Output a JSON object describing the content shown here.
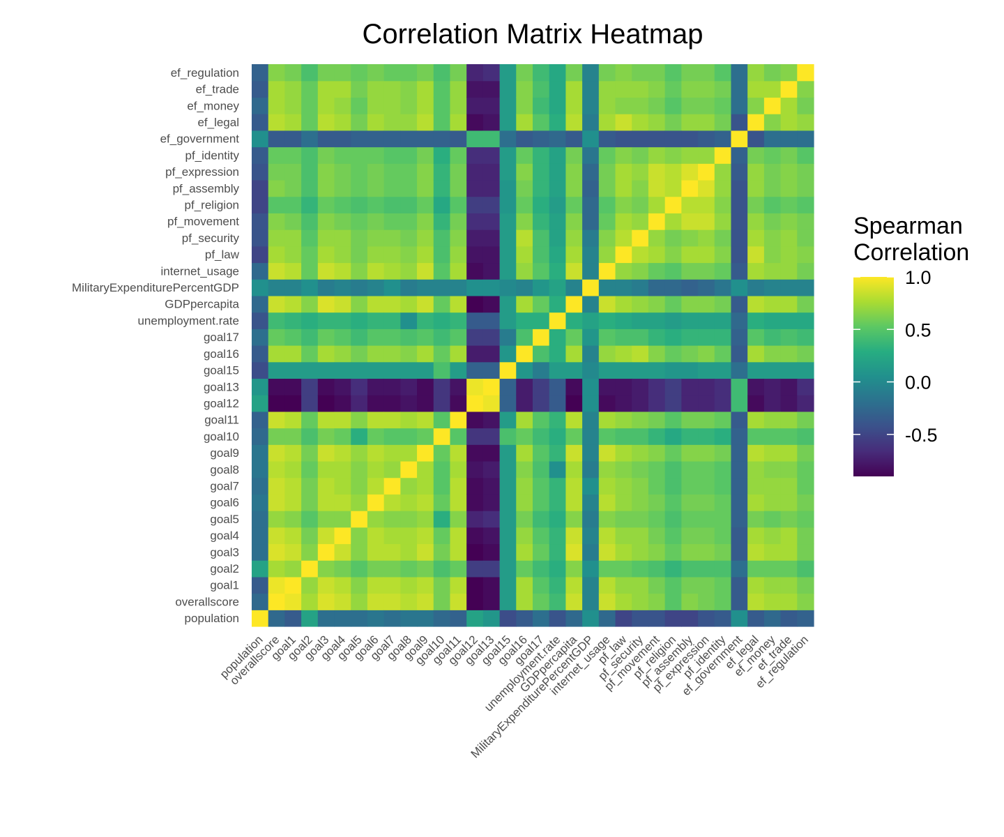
{
  "chart_data": {
    "type": "heatmap",
    "title": "Correlation Matrix Heatmap",
    "xlabel": "",
    "ylabel": "",
    "variables": [
      "population",
      "overallscore",
      "goal1",
      "goal2",
      "goal3",
      "goal4",
      "goal5",
      "goal6",
      "goal7",
      "goal8",
      "goal9",
      "goal10",
      "goal11",
      "goal12",
      "goal13",
      "goal15",
      "goal16",
      "goal17",
      "unemployment.rate",
      "GDPpercapita",
      "MilitaryExpenditurePercentGDP",
      "internet_usage",
      "pf_law",
      "pf_security",
      "pf_movement",
      "pf_religion",
      "pf_assembly",
      "pf_expression",
      "pf_identity",
      "ef_government",
      "ef_legal",
      "ef_money",
      "ef_trade",
      "ef_regulation"
    ],
    "value_range": [
      -0.9,
      1.0
    ],
    "colorscale": "viridis",
    "legend": {
      "title_lines": [
        "Spearman",
        "Correlation"
      ],
      "ticks": [
        1.0,
        0.5,
        0.0,
        -0.5
      ],
      "tick_labels": [
        "1.0",
        "0.5",
        "0.0",
        "-0.5"
      ],
      "placement": "right"
    },
    "values": [
      [
        1.0,
        -0.25,
        -0.35,
        0.2,
        -0.2,
        -0.2,
        -0.2,
        -0.15,
        -0.2,
        -0.15,
        -0.15,
        -0.25,
        -0.3,
        0.2,
        0.1,
        -0.45,
        -0.35,
        -0.2,
        -0.4,
        -0.25,
        0.05,
        -0.25,
        -0.5,
        -0.4,
        -0.4,
        -0.5,
        -0.5,
        -0.4,
        -0.35,
        0.05,
        -0.35,
        -0.25,
        -0.35,
        -0.3
      ],
      [
        -0.25,
        1.0,
        0.95,
        0.75,
        0.9,
        0.85,
        0.7,
        0.85,
        0.85,
        0.8,
        0.85,
        0.6,
        0.85,
        -0.9,
        -0.85,
        0.15,
        0.75,
        0.55,
        0.4,
        0.85,
        -0.05,
        0.85,
        0.75,
        0.7,
        0.65,
        0.5,
        0.65,
        0.6,
        0.55,
        -0.35,
        0.8,
        0.75,
        0.75,
        0.65
      ],
      [
        -0.35,
        0.95,
        1.0,
        0.7,
        0.85,
        0.8,
        0.65,
        0.8,
        0.8,
        0.75,
        0.8,
        0.6,
        0.8,
        -0.9,
        -0.85,
        0.15,
        0.75,
        0.5,
        0.35,
        0.8,
        -0.05,
        0.8,
        0.7,
        0.7,
        0.6,
        0.5,
        0.6,
        0.6,
        0.55,
        -0.35,
        0.75,
        0.7,
        0.7,
        0.6
      ],
      [
        0.2,
        0.75,
        0.7,
        1.0,
        0.65,
        0.6,
        0.5,
        0.6,
        0.6,
        0.55,
        0.6,
        0.45,
        0.55,
        -0.55,
        -0.55,
        0.15,
        0.55,
        0.4,
        0.3,
        0.65,
        0.05,
        0.55,
        0.55,
        0.5,
        0.45,
        0.35,
        0.45,
        0.45,
        0.45,
        -0.2,
        0.55,
        0.55,
        0.55,
        0.45
      ],
      [
        -0.2,
        0.9,
        0.85,
        0.65,
        1.0,
        0.85,
        0.65,
        0.8,
        0.8,
        0.75,
        0.85,
        0.6,
        0.8,
        -0.9,
        -0.85,
        0.15,
        0.75,
        0.55,
        0.35,
        0.9,
        -0.1,
        0.85,
        0.75,
        0.7,
        0.65,
        0.55,
        0.65,
        0.65,
        0.6,
        -0.35,
        0.8,
        0.75,
        0.75,
        0.6
      ],
      [
        -0.2,
        0.85,
        0.8,
        0.6,
        0.85,
        1.0,
        0.65,
        0.8,
        0.75,
        0.75,
        0.8,
        0.55,
        0.8,
        -0.85,
        -0.8,
        0.15,
        0.7,
        0.5,
        0.35,
        0.85,
        -0.05,
        0.8,
        0.7,
        0.7,
        0.6,
        0.5,
        0.6,
        0.6,
        0.55,
        -0.35,
        0.75,
        0.7,
        0.75,
        0.6
      ],
      [
        -0.2,
        0.7,
        0.65,
        0.5,
        0.65,
        0.65,
        1.0,
        0.7,
        0.65,
        0.65,
        0.7,
        0.3,
        0.65,
        -0.7,
        -0.65,
        0.15,
        0.6,
        0.4,
        0.3,
        0.65,
        -0.1,
        0.65,
        0.6,
        0.6,
        0.55,
        0.45,
        0.55,
        0.55,
        0.55,
        -0.3,
        0.6,
        0.55,
        0.6,
        0.55
      ],
      [
        -0.15,
        0.85,
        0.8,
        0.6,
        0.8,
        0.8,
        0.7,
        1.0,
        0.8,
        0.75,
        0.8,
        0.55,
        0.8,
        -0.85,
        -0.8,
        0.15,
        0.7,
        0.5,
        0.35,
        0.8,
        -0.05,
        0.8,
        0.7,
        0.65,
        0.6,
        0.5,
        0.6,
        0.6,
        0.55,
        -0.3,
        0.75,
        0.7,
        0.7,
        0.6
      ],
      [
        -0.2,
        0.85,
        0.8,
        0.6,
        0.8,
        0.75,
        0.65,
        0.8,
        1.0,
        0.7,
        0.75,
        0.5,
        0.8,
        -0.85,
        -0.8,
        0.15,
        0.7,
        0.5,
        0.35,
        0.8,
        0.05,
        0.75,
        0.7,
        0.65,
        0.55,
        0.45,
        0.55,
        0.55,
        0.5,
        -0.3,
        0.7,
        0.7,
        0.7,
        0.55
      ],
      [
        -0.15,
        0.8,
        0.75,
        0.55,
        0.75,
        0.75,
        0.65,
        0.75,
        0.7,
        1.0,
        0.75,
        0.5,
        0.75,
        -0.8,
        -0.75,
        0.15,
        0.65,
        0.45,
        0.05,
        0.75,
        -0.1,
        0.7,
        0.65,
        0.6,
        0.55,
        0.45,
        0.55,
        0.55,
        0.5,
        -0.3,
        0.7,
        0.65,
        0.65,
        0.55
      ],
      [
        -0.15,
        0.85,
        0.8,
        0.6,
        0.85,
        0.8,
        0.7,
        0.8,
        0.75,
        0.75,
        1.0,
        0.55,
        0.8,
        -0.85,
        -0.85,
        0.15,
        0.75,
        0.5,
        0.35,
        0.85,
        -0.05,
        0.85,
        0.75,
        0.7,
        0.65,
        0.55,
        0.65,
        0.65,
        0.6,
        -0.3,
        0.8,
        0.75,
        0.75,
        0.6
      ],
      [
        -0.25,
        0.6,
        0.6,
        0.45,
        0.6,
        0.55,
        0.3,
        0.55,
        0.5,
        0.5,
        0.55,
        1.0,
        0.5,
        -0.6,
        -0.6,
        0.45,
        0.55,
        0.4,
        0.3,
        0.55,
        -0.05,
        0.5,
        0.45,
        0.45,
        0.35,
        0.25,
        0.35,
        0.35,
        0.3,
        -0.3,
        0.5,
        0.5,
        0.5,
        0.45
      ],
      [
        -0.3,
        0.85,
        0.8,
        0.55,
        0.8,
        0.8,
        0.65,
        0.8,
        0.8,
        0.75,
        0.8,
        0.5,
        1.0,
        -0.85,
        -0.8,
        0.15,
        0.75,
        0.5,
        0.35,
        0.8,
        -0.05,
        0.75,
        0.7,
        0.65,
        0.6,
        0.5,
        0.6,
        0.6,
        0.55,
        -0.35,
        0.75,
        0.7,
        0.7,
        0.6
      ],
      [
        0.2,
        -0.9,
        -0.9,
        -0.55,
        -0.9,
        -0.85,
        -0.7,
        -0.85,
        -0.85,
        -0.8,
        -0.85,
        -0.6,
        -0.85,
        1.0,
        0.95,
        -0.3,
        -0.75,
        -0.55,
        -0.35,
        -0.9,
        0.05,
        -0.85,
        -0.8,
        -0.75,
        -0.65,
        -0.55,
        -0.7,
        -0.7,
        -0.65,
        0.4,
        -0.85,
        -0.75,
        -0.8,
        -0.7
      ],
      [
        0.1,
        -0.85,
        -0.85,
        -0.55,
        -0.85,
        -0.8,
        -0.65,
        -0.8,
        -0.8,
        -0.75,
        -0.85,
        -0.6,
        -0.8,
        0.95,
        1.0,
        -0.3,
        -0.75,
        -0.55,
        -0.35,
        -0.85,
        0.05,
        -0.8,
        -0.8,
        -0.75,
        -0.65,
        -0.55,
        -0.7,
        -0.7,
        -0.65,
        0.4,
        -0.8,
        -0.75,
        -0.8,
        -0.65
      ],
      [
        -0.45,
        0.15,
        0.15,
        0.15,
        0.15,
        0.15,
        0.15,
        0.15,
        0.15,
        0.15,
        0.15,
        0.45,
        0.15,
        -0.3,
        -0.3,
        1.0,
        0.1,
        -0.1,
        0.15,
        0.15,
        0.0,
        0.15,
        0.15,
        0.15,
        0.15,
        0.1,
        0.1,
        0.15,
        0.15,
        -0.2,
        0.15,
        0.15,
        0.15,
        0.15
      ],
      [
        -0.35,
        0.75,
        0.75,
        0.55,
        0.75,
        0.7,
        0.6,
        0.7,
        0.7,
        0.65,
        0.75,
        0.55,
        0.75,
        -0.75,
        -0.75,
        0.1,
        1.0,
        0.45,
        0.3,
        0.75,
        -0.05,
        0.7,
        0.75,
        0.8,
        0.65,
        0.55,
        0.6,
        0.65,
        0.55,
        -0.35,
        0.75,
        0.65,
        0.65,
        0.6
      ],
      [
        -0.2,
        0.55,
        0.5,
        0.4,
        0.55,
        0.5,
        0.4,
        0.5,
        0.5,
        0.45,
        0.5,
        0.4,
        0.5,
        -0.55,
        -0.55,
        -0.1,
        0.45,
        1.0,
        0.3,
        0.55,
        0.1,
        0.5,
        0.45,
        0.45,
        0.35,
        0.3,
        0.35,
        0.35,
        0.35,
        -0.3,
        0.5,
        0.4,
        0.45,
        0.4
      ],
      [
        -0.4,
        0.4,
        0.35,
        0.3,
        0.35,
        0.35,
        0.3,
        0.35,
        0.35,
        0.05,
        0.35,
        0.3,
        0.35,
        -0.35,
        -0.35,
        0.15,
        0.3,
        0.3,
        1.0,
        0.3,
        0.2,
        0.3,
        0.25,
        0.2,
        0.2,
        0.15,
        0.2,
        0.2,
        0.2,
        -0.25,
        0.3,
        0.25,
        0.25,
        0.25
      ],
      [
        -0.25,
        0.85,
        0.8,
        0.65,
        0.9,
        0.85,
        0.65,
        0.8,
        0.8,
        0.75,
        0.85,
        0.55,
        0.8,
        -0.9,
        -0.85,
        0.15,
        0.75,
        0.55,
        0.3,
        1.0,
        -0.05,
        0.85,
        0.75,
        0.7,
        0.65,
        0.55,
        0.65,
        0.65,
        0.6,
        -0.35,
        0.8,
        0.75,
        0.75,
        0.6
      ],
      [
        0.05,
        -0.05,
        -0.05,
        0.05,
        -0.1,
        -0.05,
        -0.1,
        -0.05,
        0.05,
        -0.1,
        -0.05,
        -0.05,
        -0.05,
        0.05,
        0.05,
        0.0,
        -0.05,
        0.1,
        0.2,
        -0.05,
        1.0,
        -0.05,
        -0.05,
        -0.1,
        -0.25,
        -0.25,
        -0.3,
        -0.25,
        -0.15,
        0.05,
        -0.1,
        -0.05,
        -0.05,
        -0.05
      ],
      [
        -0.25,
        0.85,
        0.8,
        0.55,
        0.85,
        0.8,
        0.65,
        0.8,
        0.75,
        0.7,
        0.85,
        0.5,
        0.75,
        -0.85,
        -0.8,
        0.15,
        0.7,
        0.5,
        0.3,
        0.85,
        -0.05,
        1.0,
        0.7,
        0.65,
        0.55,
        0.5,
        0.6,
        0.6,
        0.55,
        -0.35,
        0.75,
        0.7,
        0.7,
        0.6
      ],
      [
        -0.5,
        0.75,
        0.7,
        0.55,
        0.75,
        0.7,
        0.6,
        0.7,
        0.7,
        0.65,
        0.75,
        0.45,
        0.7,
        -0.8,
        -0.8,
        0.15,
        0.75,
        0.45,
        0.25,
        0.75,
        -0.05,
        0.7,
        1.0,
        0.8,
        0.75,
        0.65,
        0.75,
        0.75,
        0.65,
        -0.4,
        0.85,
        0.65,
        0.7,
        0.65
      ],
      [
        -0.4,
        0.7,
        0.7,
        0.5,
        0.7,
        0.7,
        0.6,
        0.65,
        0.65,
        0.6,
        0.7,
        0.45,
        0.65,
        -0.75,
        -0.75,
        0.15,
        0.8,
        0.45,
        0.2,
        0.7,
        -0.1,
        0.65,
        0.8,
        1.0,
        0.7,
        0.6,
        0.65,
        0.7,
        0.6,
        -0.4,
        0.75,
        0.65,
        0.7,
        0.6
      ],
      [
        -0.4,
        0.65,
        0.6,
        0.45,
        0.65,
        0.6,
        0.55,
        0.6,
        0.55,
        0.55,
        0.65,
        0.35,
        0.6,
        -0.65,
        -0.65,
        0.15,
        0.65,
        0.35,
        0.2,
        0.65,
        -0.25,
        0.55,
        0.75,
        0.7,
        1.0,
        0.75,
        0.85,
        0.85,
        0.7,
        -0.4,
        0.7,
        0.6,
        0.65,
        0.6
      ],
      [
        -0.5,
        0.5,
        0.5,
        0.35,
        0.55,
        0.5,
        0.45,
        0.5,
        0.45,
        0.45,
        0.55,
        0.25,
        0.5,
        -0.55,
        -0.55,
        0.1,
        0.55,
        0.3,
        0.15,
        0.55,
        -0.25,
        0.5,
        0.65,
        0.6,
        0.75,
        1.0,
        0.8,
        0.8,
        0.65,
        -0.4,
        0.6,
        0.5,
        0.55,
        0.5
      ],
      [
        -0.5,
        0.65,
        0.6,
        0.45,
        0.65,
        0.6,
        0.55,
        0.6,
        0.55,
        0.55,
        0.65,
        0.35,
        0.6,
        -0.7,
        -0.7,
        0.1,
        0.6,
        0.35,
        0.2,
        0.65,
        -0.3,
        0.6,
        0.75,
        0.65,
        0.85,
        0.8,
        1.0,
        0.9,
        0.7,
        -0.4,
        0.7,
        0.6,
        0.65,
        0.6
      ],
      [
        -0.4,
        0.6,
        0.6,
        0.45,
        0.65,
        0.6,
        0.55,
        0.6,
        0.55,
        0.55,
        0.65,
        0.35,
        0.6,
        -0.7,
        -0.7,
        0.15,
        0.65,
        0.35,
        0.2,
        0.65,
        -0.25,
        0.6,
        0.75,
        0.7,
        0.85,
        0.8,
        0.9,
        1.0,
        0.7,
        -0.35,
        0.7,
        0.6,
        0.65,
        0.6
      ],
      [
        -0.35,
        0.55,
        0.55,
        0.45,
        0.6,
        0.55,
        0.55,
        0.55,
        0.5,
        0.5,
        0.6,
        0.3,
        0.55,
        -0.65,
        -0.65,
        0.15,
        0.55,
        0.35,
        0.2,
        0.6,
        -0.15,
        0.55,
        0.65,
        0.6,
        0.7,
        0.65,
        0.7,
        0.7,
        1.0,
        -0.3,
        0.6,
        0.55,
        0.6,
        0.5
      ],
      [
        0.05,
        -0.35,
        -0.35,
        -0.2,
        -0.35,
        -0.35,
        -0.3,
        -0.3,
        -0.3,
        -0.3,
        -0.3,
        -0.3,
        -0.35,
        0.4,
        0.4,
        -0.2,
        -0.35,
        -0.3,
        -0.25,
        -0.35,
        0.05,
        -0.35,
        -0.4,
        -0.4,
        -0.4,
        -0.4,
        -0.4,
        -0.35,
        -0.3,
        1.0,
        -0.4,
        -0.2,
        -0.2,
        -0.2
      ],
      [
        -0.35,
        0.8,
        0.75,
        0.55,
        0.8,
        0.75,
        0.6,
        0.75,
        0.7,
        0.7,
        0.8,
        0.5,
        0.75,
        -0.85,
        -0.8,
        0.15,
        0.75,
        0.5,
        0.3,
        0.8,
        -0.1,
        0.75,
        0.85,
        0.75,
        0.7,
        0.6,
        0.7,
        0.7,
        0.6,
        -0.4,
        1.0,
        0.65,
        0.75,
        0.7
      ],
      [
        -0.25,
        0.75,
        0.7,
        0.55,
        0.75,
        0.7,
        0.55,
        0.7,
        0.7,
        0.65,
        0.75,
        0.5,
        0.7,
        -0.75,
        -0.75,
        0.15,
        0.65,
        0.4,
        0.25,
        0.75,
        -0.05,
        0.7,
        0.65,
        0.65,
        0.6,
        0.5,
        0.6,
        0.6,
        0.55,
        -0.2,
        0.65,
        1.0,
        0.75,
        0.6
      ],
      [
        -0.35,
        0.75,
        0.7,
        0.55,
        0.75,
        0.75,
        0.6,
        0.7,
        0.7,
        0.65,
        0.75,
        0.5,
        0.7,
        -0.8,
        -0.8,
        0.15,
        0.65,
        0.45,
        0.25,
        0.75,
        -0.05,
        0.7,
        0.7,
        0.7,
        0.65,
        0.55,
        0.65,
        0.65,
        0.6,
        -0.2,
        0.75,
        0.75,
        1.0,
        0.65
      ],
      [
        -0.3,
        0.65,
        0.6,
        0.45,
        0.6,
        0.6,
        0.55,
        0.6,
        0.55,
        0.55,
        0.6,
        0.45,
        0.6,
        -0.7,
        -0.65,
        0.15,
        0.6,
        0.4,
        0.25,
        0.6,
        -0.05,
        0.6,
        0.65,
        0.6,
        0.6,
        0.5,
        0.6,
        0.6,
        0.5,
        -0.2,
        0.7,
        0.6,
        0.65,
        1.0
      ]
    ]
  }
}
